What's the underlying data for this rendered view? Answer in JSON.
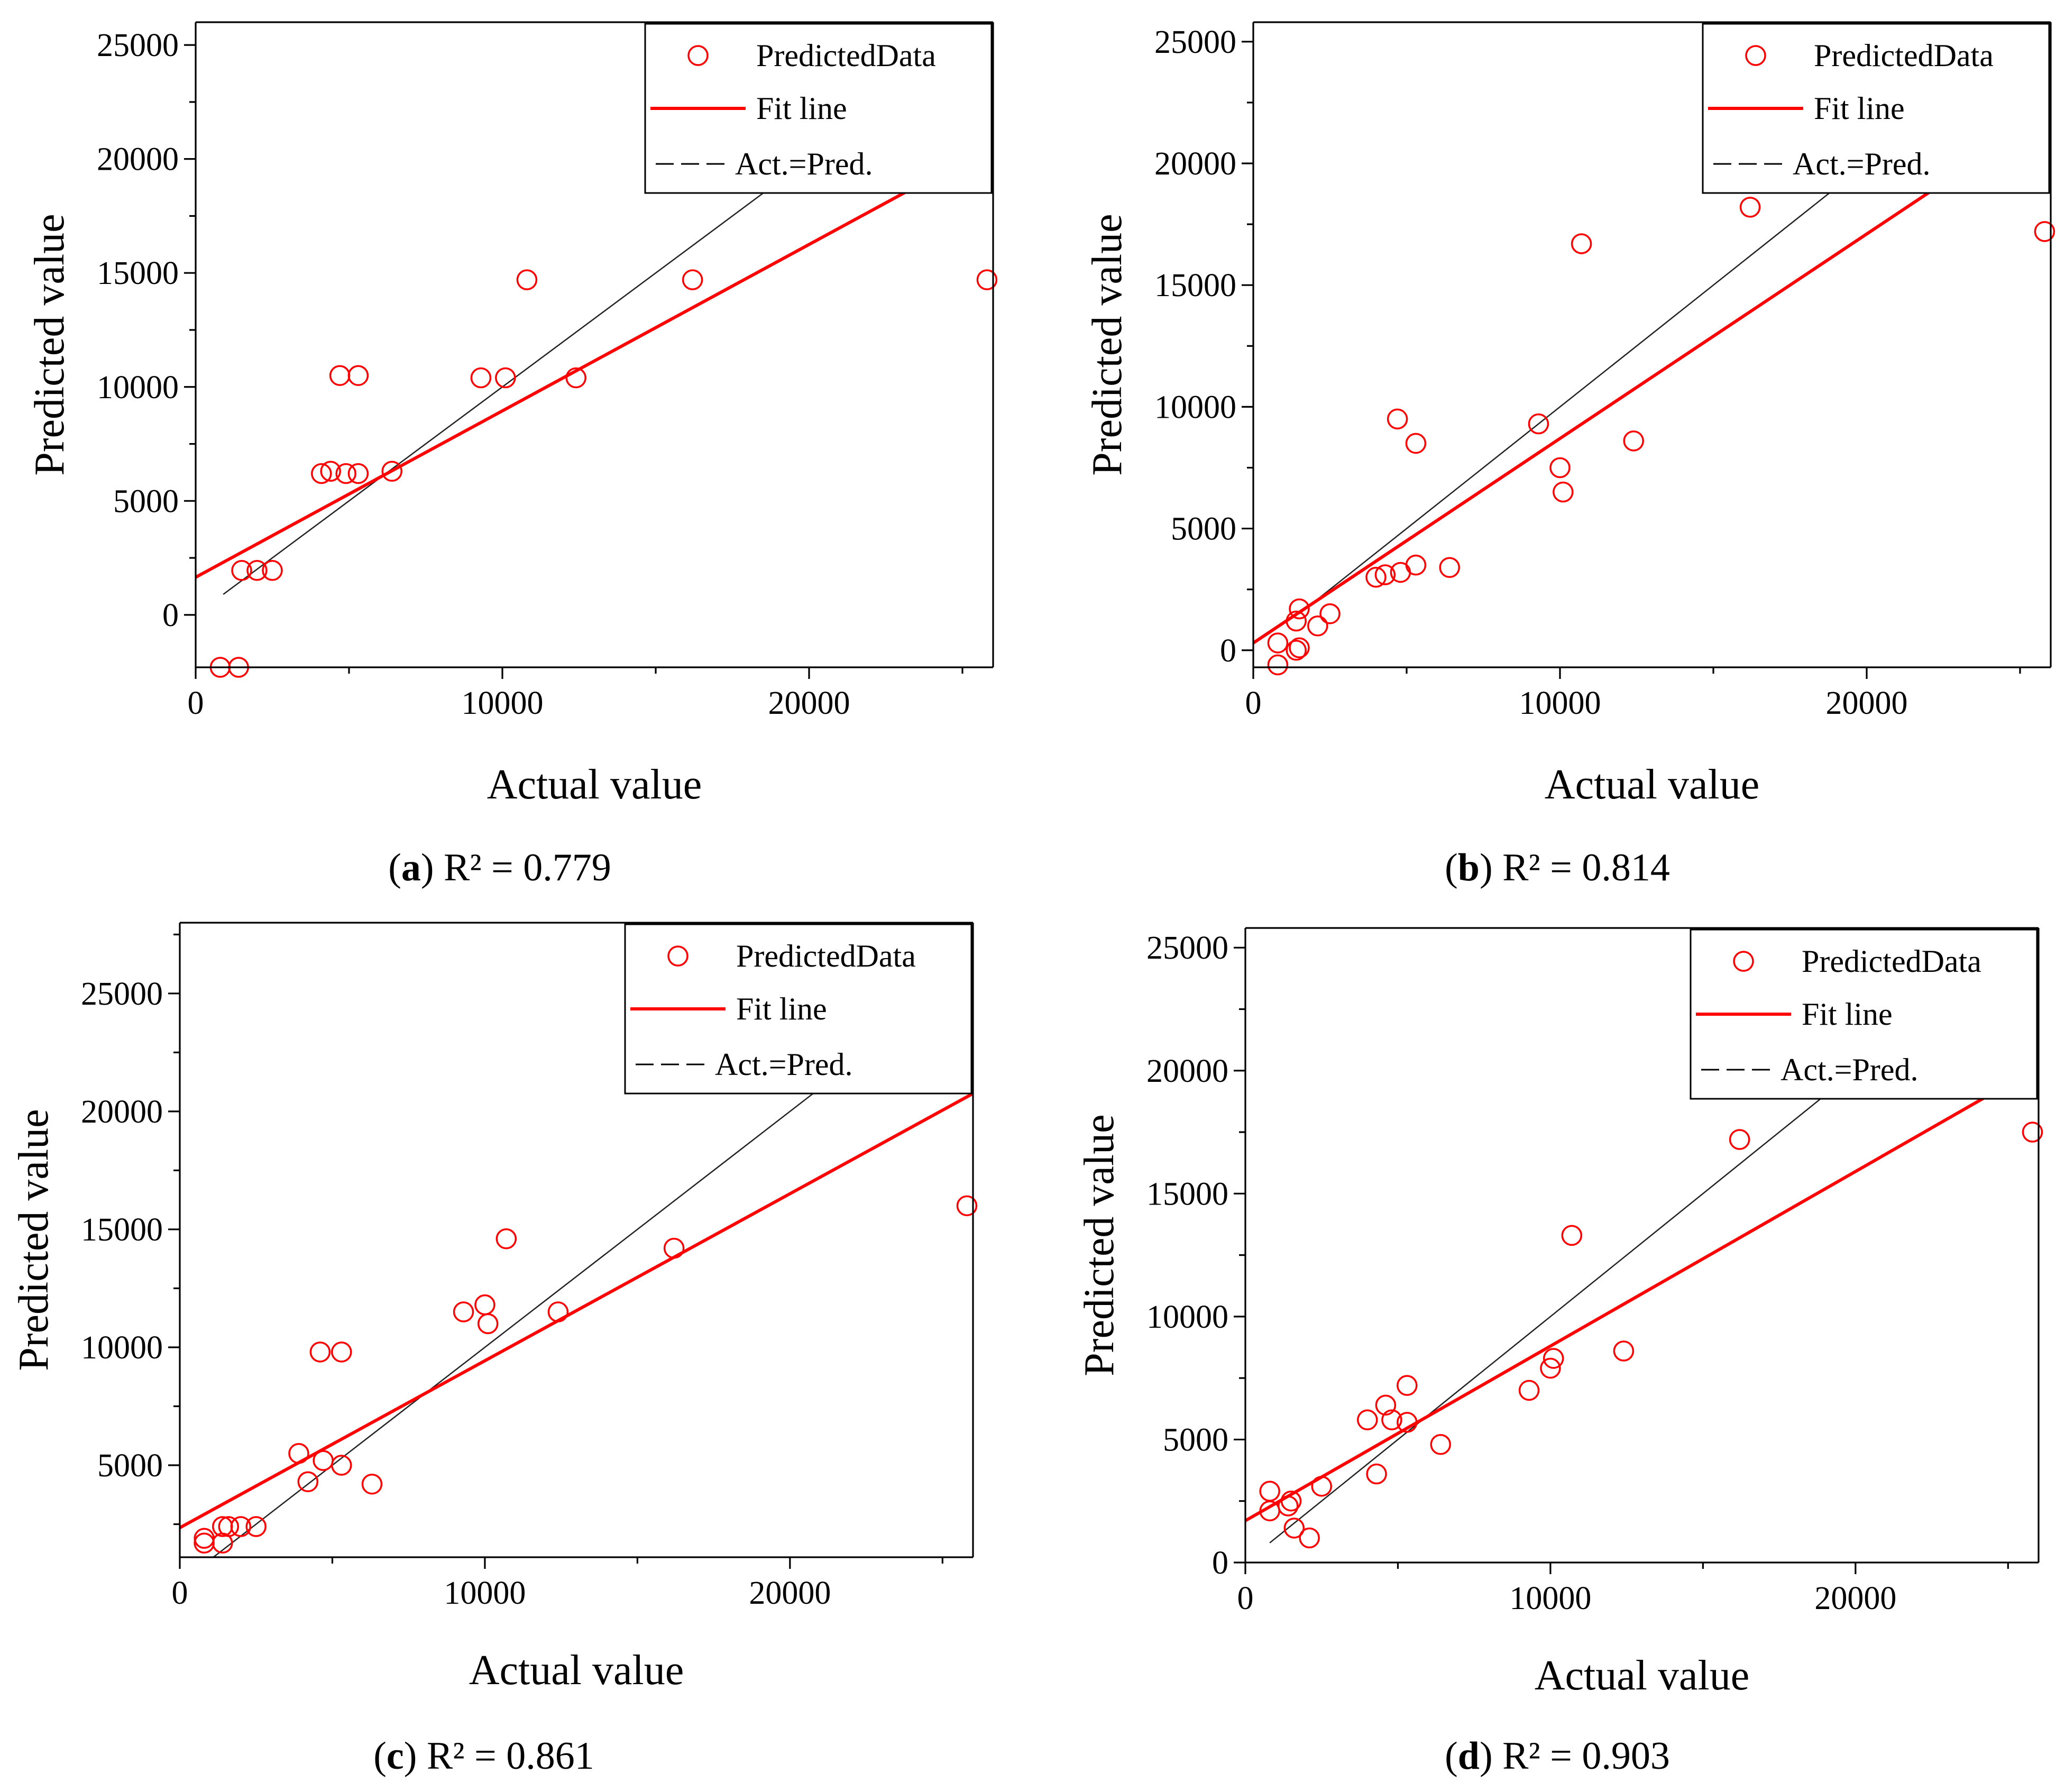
{
  "chart_data": [
    {
      "id": "a",
      "type": "scatter",
      "xlabel": "Actual value",
      "ylabel": "Predicted value",
      "xlim": [
        0,
        26000
      ],
      "ylim": [
        -2300,
        26000
      ],
      "xticks": [
        0,
        10000,
        20000
      ],
      "yticks": [
        0,
        5000,
        10000,
        15000,
        20000,
        25000
      ],
      "caption_letter": "a",
      "caption_rest": " R² = 0.779",
      "legend": [
        "PredictedData",
        "Fit line",
        "Act.=Pred."
      ],
      "fit_line": {
        "slope": 0.73,
        "intercept": 1650
      },
      "identity_range": [
        900,
        23500
      ],
      "points": [
        [
          800,
          -2300
        ],
        [
          1400,
          -2300
        ],
        [
          1500,
          1950
        ],
        [
          2000,
          1950
        ],
        [
          2500,
          1950
        ],
        [
          4100,
          6200
        ],
        [
          4400,
          6300
        ],
        [
          4900,
          6200
        ],
        [
          5300,
          6200
        ],
        [
          6400,
          6300
        ],
        [
          4700,
          10500
        ],
        [
          5300,
          10500
        ],
        [
          9300,
          10400
        ],
        [
          10100,
          10400
        ],
        [
          12400,
          10400
        ],
        [
          10800,
          14700
        ],
        [
          16200,
          14700
        ],
        [
          25800,
          14700
        ]
      ]
    },
    {
      "id": "b",
      "type": "scatter",
      "xlabel": "Actual value",
      "ylabel": "Predicted value",
      "xlim": [
        0,
        26000
      ],
      "ylim": [
        -700,
        25800
      ],
      "xticks": [
        0,
        10000,
        20000
      ],
      "yticks": [
        0,
        5000,
        10000,
        15000,
        20000,
        25000
      ],
      "caption_letter": "b",
      "caption_rest": " R² = 0.814",
      "legend": [
        "PredictedData",
        "Fit line",
        "Act.=Pred."
      ],
      "fit_line": {
        "slope": 0.84,
        "intercept": 300
      },
      "identity_range": [
        1500,
        23600
      ],
      "points": [
        [
          800,
          -600
        ],
        [
          800,
          300
        ],
        [
          1400,
          0
        ],
        [
          1500,
          100
        ],
        [
          1400,
          1200
        ],
        [
          1500,
          1700
        ],
        [
          2100,
          1000
        ],
        [
          2500,
          1500
        ],
        [
          4000,
          3000
        ],
        [
          4300,
          3100
        ],
        [
          4800,
          3200
        ],
        [
          5300,
          3500
        ],
        [
          6400,
          3400
        ],
        [
          4700,
          9500
        ],
        [
          5300,
          8500
        ],
        [
          9300,
          9300
        ],
        [
          10000,
          7500
        ],
        [
          10100,
          6500
        ],
        [
          12400,
          8600
        ],
        [
          10700,
          16700
        ],
        [
          16200,
          18200
        ],
        [
          25800,
          17200
        ]
      ]
    },
    {
      "id": "c",
      "type": "scatter",
      "xlabel": "Actual value",
      "ylabel": "Predicted value",
      "xlim": [
        0,
        26000
      ],
      "ylim": [
        1100,
        28000
      ],
      "xticks": [
        0,
        10000,
        20000
      ],
      "yticks": [
        5000,
        10000,
        15000,
        20000,
        25000
      ],
      "caption_letter": "c",
      "caption_rest": " R² = 0.861",
      "legend": [
        "PredictedData",
        "Fit line",
        "Act.=Pred."
      ],
      "fit_line": {
        "slope": 0.708,
        "intercept": 2350
      },
      "identity_range": [
        1000,
        22500
      ],
      "points": [
        [
          800,
          1900
        ],
        [
          800,
          1700
        ],
        [
          1400,
          1700
        ],
        [
          1400,
          2400
        ],
        [
          1600,
          2400
        ],
        [
          2000,
          2400
        ],
        [
          2500,
          2400
        ],
        [
          3900,
          5500
        ],
        [
          4200,
          4300
        ],
        [
          4700,
          5200
        ],
        [
          5300,
          5000
        ],
        [
          6300,
          4200
        ],
        [
          4600,
          9800
        ],
        [
          5300,
          9800
        ],
        [
          9300,
          11500
        ],
        [
          10000,
          11800
        ],
        [
          10100,
          11000
        ],
        [
          12400,
          11500
        ],
        [
          10700,
          14600
        ],
        [
          16200,
          14200
        ],
        [
          25800,
          16000
        ]
      ]
    },
    {
      "id": "d",
      "type": "scatter",
      "xlabel": "Actual value",
      "ylabel": "Predicted value",
      "xlim": [
        0,
        26000
      ],
      "ylim": [
        0,
        25800
      ],
      "xticks": [
        0,
        10000,
        20000
      ],
      "yticks": [
        0,
        5000,
        10000,
        15000,
        20000,
        25000
      ],
      "caption_letter": "d",
      "caption_rest": " R² = 0.903",
      "legend": [
        "PredictedData",
        "Fit line",
        "Act.=Pred."
      ],
      "fit_line": {
        "slope": 0.71,
        "intercept": 1700
      },
      "identity_range": [
        800,
        23400
      ],
      "points": [
        [
          800,
          2900
        ],
        [
          800,
          2100
        ],
        [
          1400,
          2300
        ],
        [
          1500,
          2500
        ],
        [
          1600,
          1400
        ],
        [
          2100,
          1000
        ],
        [
          2500,
          3100
        ],
        [
          4000,
          5800
        ],
        [
          4300,
          3600
        ],
        [
          4600,
          6400
        ],
        [
          4800,
          5800
        ],
        [
          5300,
          7200
        ],
        [
          5300,
          5700
        ],
        [
          6400,
          4800
        ],
        [
          9300,
          7000
        ],
        [
          10000,
          7900
        ],
        [
          10100,
          8300
        ],
        [
          12400,
          8600
        ],
        [
          10700,
          13300
        ],
        [
          16200,
          17200
        ],
        [
          25800,
          17500
        ]
      ]
    }
  ]
}
